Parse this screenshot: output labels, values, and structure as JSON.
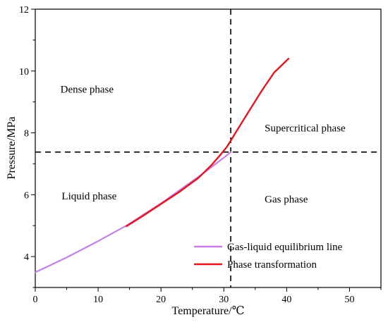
{
  "chart_data": {
    "type": "line",
    "title": "",
    "xlabel": "Temperature/℃",
    "ylabel": "Pressure/MPa",
    "xlim": [
      0,
      55
    ],
    "ylim": [
      3,
      12
    ],
    "x_ticks": [
      0,
      10,
      20,
      30,
      40,
      50
    ],
    "y_ticks": [
      4,
      6,
      8,
      10,
      12
    ],
    "grid": false,
    "legend_position": "bottom-right",
    "series": [
      {
        "name": "Gas-liquid equilibrium line",
        "color": "#c77ee8",
        "x": [
          0,
          5,
          10,
          14.5,
          20,
          25,
          27.5,
          30,
          31.1
        ],
        "y": [
          3.49,
          3.97,
          4.5,
          5.0,
          5.72,
          6.44,
          6.81,
          7.2,
          7.38
        ]
      },
      {
        "name": "Phase transformation",
        "color": "#e8141c",
        "x": [
          14.5,
          17,
          20,
          23,
          26,
          28,
          29.5,
          30.5,
          31.2,
          32,
          34,
          36,
          38,
          40.3
        ],
        "y": [
          4.98,
          5.3,
          5.7,
          6.1,
          6.55,
          6.95,
          7.3,
          7.55,
          7.78,
          8.05,
          8.7,
          9.35,
          9.95,
          10.4
        ]
      }
    ],
    "reference_lines": [
      {
        "type": "vertical",
        "x": 31.1,
        "style": "dashed"
      },
      {
        "type": "horizontal",
        "y": 7.38,
        "style": "dashed"
      }
    ],
    "annotations": [
      {
        "text": "Dense phase",
        "x": 4,
        "y": 9.3
      },
      {
        "text": "Supercritical phase",
        "x": 36.5,
        "y": 8.05
      },
      {
        "text": "Liquid phase",
        "x": 4.2,
        "y": 5.85
      },
      {
        "text": "Gas phase",
        "x": 36.5,
        "y": 5.75
      }
    ]
  }
}
